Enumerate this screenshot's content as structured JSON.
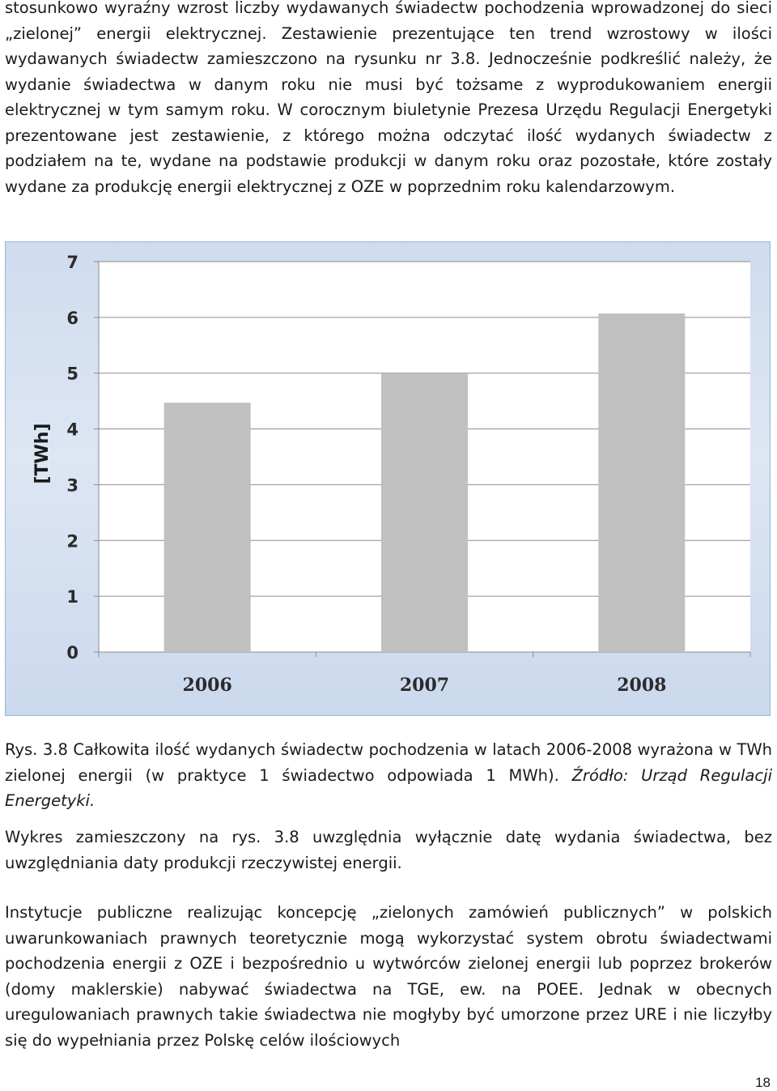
{
  "paragraph1": [
    "stosunkowo wyraźny wzrost liczby wydawanych świadectw pochodzenia wprowadzonej do sieci „zielonej” energii elektrycznej. Zestawienie prezentujące ten trend wzrostowy w ilości wydawanych świadectw zamieszczono na rysunku nr 3.8. Jednocześnie podkreślić należy, że wydanie świadectwa w danym roku nie musi być tożsame z wyprodukowaniem energii elektrycznej w tym samym roku. W corocznym biuletynie Prezesa Urzędu Regulacji Energetyki prezentowane jest zestawienie, z którego można odczytać ilość wydanych świadectw z podziałem na te, wydane na podstawie produkcji w danym roku oraz pozostałe, które zostały wydane za produkcję energii elektrycznej z OZE w poprzednim roku kalendarzowym."
  ],
  "chart_data": {
    "type": "bar",
    "categories": [
      "2006",
      "2007",
      "2008"
    ],
    "values": [
      4.47,
      4.99,
      6.07
    ],
    "title": "",
    "xlabel": "",
    "ylabel": "[TWh]",
    "ylim": [
      0,
      7
    ],
    "yticks": [
      "0",
      "1",
      "2",
      "3",
      "4",
      "5",
      "6",
      "7"
    ],
    "grid": true,
    "legend": "none",
    "colors": {
      "bar": "#c0c0c0",
      "plot_bg": "#ffffff",
      "grid": "#8c8c8c",
      "frame_border": "#9fb3d3"
    }
  },
  "caption": {
    "text": "Rys. 3.8 Całkowita ilość wydanych świadectw pochodzenia w latach 2006-2008 wyrażona w TWh zielonej energii (w praktyce 1 świadectwo odpowiada 1 MWh). ",
    "source": "Źródło: Urząd Regulacji Energetyki."
  },
  "paragraph2": "Wykres zamieszczony na rys. 3.8 uwzględnia wyłącznie datę wydania świadectwa, bez uwzględniania daty produkcji rzeczywistej energii.",
  "paragraph3": "Instytucje publiczne realizując koncepcję „zielonych zamówień publicznych” w polskich uwarunkowaniach prawnych teoretycznie mogą wykorzystać system obrotu świadectwami pochodzenia energii z OZE i bezpośrednio u wytwórców zielonej energii lub poprzez brokerów (domy maklerskie) nabywać świadectwa na TGE, ew. na POEE. Jednak w obecnych uregulowaniach prawnych takie świadectwa nie mogłyby być umorzone przez URE i nie liczyłby się do wypełniania przez Polskę celów ilościowych",
  "page_number": "18"
}
